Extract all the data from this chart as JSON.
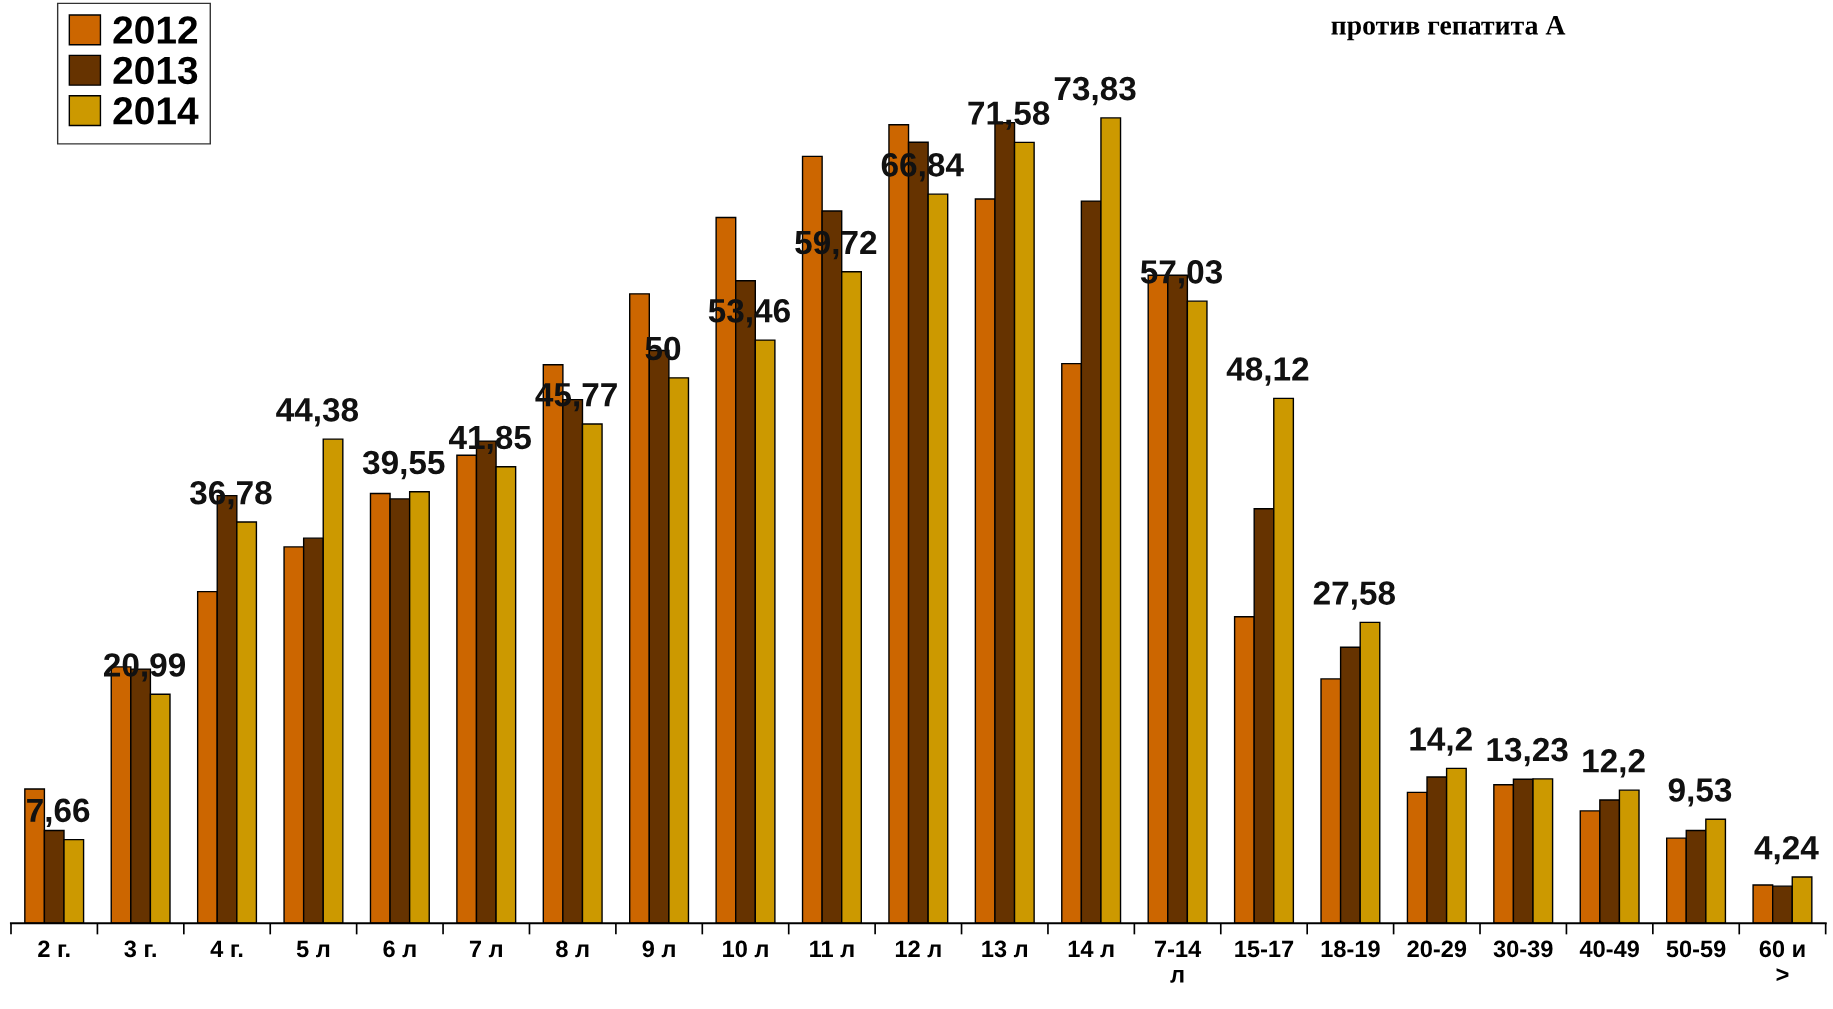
{
  "chart_data": {
    "type": "bar",
    "title": "против гепатита А",
    "categories": [
      "2 г.",
      "3 г.",
      "4 г.",
      "5 л",
      "6 л",
      "7 л",
      "8 л",
      "9 л",
      "10 л",
      "11 л",
      "12 л",
      "13 л",
      "14 л",
      "7-14 л",
      "15-17",
      "18-19",
      "20-29",
      "30-39",
      "40-49",
      "50-59",
      "60 и >"
    ],
    "series": [
      {
        "name": "2012",
        "color": "#cc6600",
        "values": [
          12.3,
          23.5,
          30.4,
          34.5,
          39.4,
          42.9,
          51.2,
          57.7,
          64.7,
          70.3,
          73.2,
          66.4,
          51.3,
          59.4,
          28.1,
          22.4,
          12.0,
          12.7,
          10.3,
          7.8,
          3.5
        ]
      },
      {
        "name": "2013",
        "color": "#663300",
        "values": [
          8.5,
          23.3,
          39.2,
          35.3,
          38.9,
          44.2,
          48.0,
          52.5,
          58.9,
          65.3,
          71.6,
          73.4,
          66.2,
          59.4,
          38.0,
          25.3,
          13.4,
          13.2,
          11.3,
          8.5,
          3.4
        ]
      },
      {
        "name": "2014",
        "color": "#cc9900",
        "values": [
          7.66,
          20.99,
          36.78,
          44.38,
          39.55,
          41.85,
          45.77,
          50,
          53.46,
          59.72,
          66.84,
          71.58,
          73.83,
          57.03,
          48.12,
          27.58,
          14.2,
          13.23,
          12.2,
          9.53,
          4.24
        ],
        "value_labels": [
          "7,66",
          "20,99",
          "36,78",
          "44,38",
          "39,55",
          "41,85",
          "45,77",
          "50",
          "53,46",
          "59,72",
          "66,84",
          "71,58",
          "73,83",
          "57,03",
          "48,12",
          "27,58",
          "14,2",
          "13,23",
          "12,2",
          "9,53",
          "4,24"
        ]
      }
    ],
    "legend": "top left",
    "grid": false
  }
}
